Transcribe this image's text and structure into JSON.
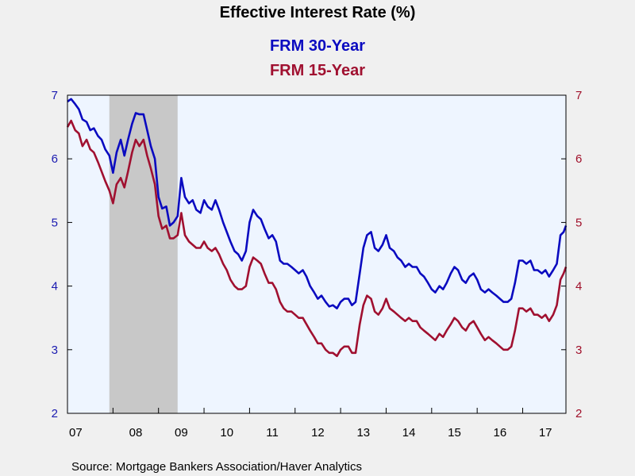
{
  "chart_data": {
    "type": "line",
    "title": "Effective Interest Rate (%)",
    "source": "Source:  Mortgage Bankers Association/Haver Analytics",
    "x_unit": "year",
    "xlim": [
      2007.0,
      2017.95
    ],
    "x_ticks": [
      {
        "label": "07",
        "year": 2007
      },
      {
        "label": "08",
        "year": 2008
      },
      {
        "label": "09",
        "year": 2009
      },
      {
        "label": "10",
        "year": 2010
      },
      {
        "label": "11",
        "year": 2011
      },
      {
        "label": "12",
        "year": 2012
      },
      {
        "label": "13",
        "year": 2013
      },
      {
        "label": "14",
        "year": 2014
      },
      {
        "label": "15",
        "year": 2015
      },
      {
        "label": "16",
        "year": 2016
      },
      {
        "label": "17",
        "year": 2017
      }
    ],
    "left_axis": {
      "ticks": [
        2,
        3,
        4,
        5,
        6,
        7
      ],
      "ylim": [
        2,
        7
      ],
      "color": "#1a1ab0"
    },
    "right_axis": {
      "ticks": [
        2,
        3,
        4,
        5,
        6,
        7
      ],
      "ylim": [
        2,
        7
      ],
      "color": "#a0102a"
    },
    "recession": {
      "start": 2007.92,
      "end": 2009.42,
      "color": "#c8c8c8"
    },
    "plot_background": "#eef5ff",
    "series": [
      {
        "name": "FRM 30-Year",
        "color": "#0a0ac0",
        "points": [
          [
            2007.0,
            6.9
          ],
          [
            2007.08,
            6.94
          ],
          [
            2007.17,
            6.86
          ],
          [
            2007.25,
            6.78
          ],
          [
            2007.33,
            6.62
          ],
          [
            2007.42,
            6.58
          ],
          [
            2007.5,
            6.45
          ],
          [
            2007.58,
            6.48
          ],
          [
            2007.67,
            6.36
          ],
          [
            2007.75,
            6.3
          ],
          [
            2007.83,
            6.15
          ],
          [
            2007.92,
            6.05
          ],
          [
            2008.0,
            5.78
          ],
          [
            2008.08,
            6.1
          ],
          [
            2008.17,
            6.3
          ],
          [
            2008.25,
            6.05
          ],
          [
            2008.33,
            6.3
          ],
          [
            2008.42,
            6.55
          ],
          [
            2008.5,
            6.72
          ],
          [
            2008.58,
            6.7
          ],
          [
            2008.67,
            6.7
          ],
          [
            2008.75,
            6.45
          ],
          [
            2008.83,
            6.2
          ],
          [
            2008.92,
            6.0
          ],
          [
            2009.0,
            5.4
          ],
          [
            2009.08,
            5.22
          ],
          [
            2009.17,
            5.25
          ],
          [
            2009.25,
            4.95
          ],
          [
            2009.33,
            5.0
          ],
          [
            2009.42,
            5.1
          ],
          [
            2009.5,
            5.7
          ],
          [
            2009.58,
            5.4
          ],
          [
            2009.67,
            5.3
          ],
          [
            2009.75,
            5.35
          ],
          [
            2009.83,
            5.2
          ],
          [
            2009.92,
            5.15
          ],
          [
            2010.0,
            5.35
          ],
          [
            2010.08,
            5.25
          ],
          [
            2010.17,
            5.2
          ],
          [
            2010.25,
            5.35
          ],
          [
            2010.33,
            5.2
          ],
          [
            2010.42,
            5.0
          ],
          [
            2010.5,
            4.85
          ],
          [
            2010.58,
            4.7
          ],
          [
            2010.67,
            4.55
          ],
          [
            2010.75,
            4.5
          ],
          [
            2010.83,
            4.4
          ],
          [
            2010.92,
            4.55
          ],
          [
            2011.0,
            5.0
          ],
          [
            2011.08,
            5.2
          ],
          [
            2011.17,
            5.1
          ],
          [
            2011.25,
            5.05
          ],
          [
            2011.33,
            4.9
          ],
          [
            2011.42,
            4.75
          ],
          [
            2011.5,
            4.8
          ],
          [
            2011.58,
            4.7
          ],
          [
            2011.67,
            4.4
          ],
          [
            2011.75,
            4.35
          ],
          [
            2011.83,
            4.35
          ],
          [
            2011.92,
            4.3
          ],
          [
            2012.0,
            4.25
          ],
          [
            2012.08,
            4.2
          ],
          [
            2012.17,
            4.25
          ],
          [
            2012.25,
            4.15
          ],
          [
            2012.33,
            4.0
          ],
          [
            2012.42,
            3.9
          ],
          [
            2012.5,
            3.8
          ],
          [
            2012.58,
            3.85
          ],
          [
            2012.67,
            3.75
          ],
          [
            2012.75,
            3.68
          ],
          [
            2012.83,
            3.7
          ],
          [
            2012.92,
            3.65
          ],
          [
            2013.0,
            3.75
          ],
          [
            2013.08,
            3.8
          ],
          [
            2013.17,
            3.8
          ],
          [
            2013.25,
            3.7
          ],
          [
            2013.33,
            3.75
          ],
          [
            2013.42,
            4.2
          ],
          [
            2013.5,
            4.6
          ],
          [
            2013.58,
            4.8
          ],
          [
            2013.67,
            4.85
          ],
          [
            2013.75,
            4.6
          ],
          [
            2013.83,
            4.55
          ],
          [
            2013.92,
            4.65
          ],
          [
            2014.0,
            4.8
          ],
          [
            2014.08,
            4.6
          ],
          [
            2014.17,
            4.55
          ],
          [
            2014.25,
            4.45
          ],
          [
            2014.33,
            4.4
          ],
          [
            2014.42,
            4.3
          ],
          [
            2014.5,
            4.35
          ],
          [
            2014.58,
            4.3
          ],
          [
            2014.67,
            4.3
          ],
          [
            2014.75,
            4.2
          ],
          [
            2014.83,
            4.15
          ],
          [
            2014.92,
            4.05
          ],
          [
            2015.0,
            3.95
          ],
          [
            2015.08,
            3.9
          ],
          [
            2015.17,
            4.0
          ],
          [
            2015.25,
            3.95
          ],
          [
            2015.33,
            4.05
          ],
          [
            2015.42,
            4.2
          ],
          [
            2015.5,
            4.3
          ],
          [
            2015.58,
            4.25
          ],
          [
            2015.67,
            4.1
          ],
          [
            2015.75,
            4.05
          ],
          [
            2015.83,
            4.15
          ],
          [
            2015.92,
            4.2
          ],
          [
            2016.0,
            4.1
          ],
          [
            2016.08,
            3.95
          ],
          [
            2016.17,
            3.9
          ],
          [
            2016.25,
            3.95
          ],
          [
            2016.33,
            3.9
          ],
          [
            2016.42,
            3.85
          ],
          [
            2016.5,
            3.8
          ],
          [
            2016.58,
            3.75
          ],
          [
            2016.67,
            3.75
          ],
          [
            2016.75,
            3.8
          ],
          [
            2016.83,
            4.05
          ],
          [
            2016.92,
            4.4
          ],
          [
            2017.0,
            4.4
          ],
          [
            2017.08,
            4.35
          ],
          [
            2017.17,
            4.4
          ],
          [
            2017.25,
            4.25
          ],
          [
            2017.33,
            4.25
          ],
          [
            2017.42,
            4.2
          ],
          [
            2017.5,
            4.25
          ],
          [
            2017.58,
            4.15
          ],
          [
            2017.67,
            4.25
          ],
          [
            2017.75,
            4.35
          ],
          [
            2017.83,
            4.8
          ],
          [
            2017.9,
            4.85
          ],
          [
            2017.95,
            4.95
          ]
        ]
      },
      {
        "name": "FRM 15-Year",
        "color": "#a01030",
        "points": [
          [
            2007.0,
            6.5
          ],
          [
            2007.08,
            6.6
          ],
          [
            2007.17,
            6.45
          ],
          [
            2007.25,
            6.4
          ],
          [
            2007.33,
            6.2
          ],
          [
            2007.42,
            6.3
          ],
          [
            2007.5,
            6.15
          ],
          [
            2007.58,
            6.1
          ],
          [
            2007.67,
            5.95
          ],
          [
            2007.75,
            5.8
          ],
          [
            2007.83,
            5.65
          ],
          [
            2007.92,
            5.5
          ],
          [
            2008.0,
            5.3
          ],
          [
            2008.08,
            5.6
          ],
          [
            2008.17,
            5.7
          ],
          [
            2008.25,
            5.55
          ],
          [
            2008.33,
            5.8
          ],
          [
            2008.42,
            6.1
          ],
          [
            2008.5,
            6.3
          ],
          [
            2008.58,
            6.2
          ],
          [
            2008.67,
            6.3
          ],
          [
            2008.75,
            6.05
          ],
          [
            2008.83,
            5.85
          ],
          [
            2008.92,
            5.6
          ],
          [
            2009.0,
            5.1
          ],
          [
            2009.08,
            4.9
          ],
          [
            2009.17,
            4.95
          ],
          [
            2009.25,
            4.75
          ],
          [
            2009.33,
            4.75
          ],
          [
            2009.42,
            4.8
          ],
          [
            2009.5,
            5.15
          ],
          [
            2009.58,
            4.8
          ],
          [
            2009.67,
            4.7
          ],
          [
            2009.75,
            4.65
          ],
          [
            2009.83,
            4.6
          ],
          [
            2009.92,
            4.6
          ],
          [
            2010.0,
            4.7
          ],
          [
            2010.08,
            4.6
          ],
          [
            2010.17,
            4.55
          ],
          [
            2010.25,
            4.6
          ],
          [
            2010.33,
            4.5
          ],
          [
            2010.42,
            4.35
          ],
          [
            2010.5,
            4.25
          ],
          [
            2010.58,
            4.1
          ],
          [
            2010.67,
            4.0
          ],
          [
            2010.75,
            3.95
          ],
          [
            2010.83,
            3.95
          ],
          [
            2010.92,
            4.0
          ],
          [
            2011.0,
            4.3
          ],
          [
            2011.08,
            4.45
          ],
          [
            2011.17,
            4.4
          ],
          [
            2011.25,
            4.35
          ],
          [
            2011.33,
            4.2
          ],
          [
            2011.42,
            4.05
          ],
          [
            2011.5,
            4.05
          ],
          [
            2011.58,
            3.95
          ],
          [
            2011.67,
            3.75
          ],
          [
            2011.75,
            3.65
          ],
          [
            2011.83,
            3.6
          ],
          [
            2011.92,
            3.6
          ],
          [
            2012.0,
            3.55
          ],
          [
            2012.08,
            3.5
          ],
          [
            2012.17,
            3.5
          ],
          [
            2012.25,
            3.4
          ],
          [
            2012.33,
            3.3
          ],
          [
            2012.42,
            3.2
          ],
          [
            2012.5,
            3.1
          ],
          [
            2012.58,
            3.1
          ],
          [
            2012.67,
            3.0
          ],
          [
            2012.75,
            2.95
          ],
          [
            2012.83,
            2.95
          ],
          [
            2012.92,
            2.9
          ],
          [
            2013.0,
            3.0
          ],
          [
            2013.08,
            3.05
          ],
          [
            2013.17,
            3.05
          ],
          [
            2013.25,
            2.95
          ],
          [
            2013.33,
            2.95
          ],
          [
            2013.42,
            3.4
          ],
          [
            2013.5,
            3.7
          ],
          [
            2013.58,
            3.85
          ],
          [
            2013.67,
            3.8
          ],
          [
            2013.75,
            3.6
          ],
          [
            2013.83,
            3.55
          ],
          [
            2013.92,
            3.65
          ],
          [
            2014.0,
            3.8
          ],
          [
            2014.08,
            3.65
          ],
          [
            2014.17,
            3.6
          ],
          [
            2014.25,
            3.55
          ],
          [
            2014.33,
            3.5
          ],
          [
            2014.42,
            3.45
          ],
          [
            2014.5,
            3.5
          ],
          [
            2014.58,
            3.45
          ],
          [
            2014.67,
            3.45
          ],
          [
            2014.75,
            3.35
          ],
          [
            2014.83,
            3.3
          ],
          [
            2014.92,
            3.25
          ],
          [
            2015.0,
            3.2
          ],
          [
            2015.08,
            3.15
          ],
          [
            2015.17,
            3.25
          ],
          [
            2015.25,
            3.2
          ],
          [
            2015.33,
            3.3
          ],
          [
            2015.42,
            3.4
          ],
          [
            2015.5,
            3.5
          ],
          [
            2015.58,
            3.45
          ],
          [
            2015.67,
            3.35
          ],
          [
            2015.75,
            3.3
          ],
          [
            2015.83,
            3.4
          ],
          [
            2015.92,
            3.45
          ],
          [
            2016.0,
            3.35
          ],
          [
            2016.08,
            3.25
          ],
          [
            2016.17,
            3.15
          ],
          [
            2016.25,
            3.2
          ],
          [
            2016.33,
            3.15
          ],
          [
            2016.42,
            3.1
          ],
          [
            2016.5,
            3.05
          ],
          [
            2016.58,
            3.0
          ],
          [
            2016.67,
            3.0
          ],
          [
            2016.75,
            3.05
          ],
          [
            2016.83,
            3.3
          ],
          [
            2016.92,
            3.65
          ],
          [
            2017.0,
            3.65
          ],
          [
            2017.08,
            3.6
          ],
          [
            2017.17,
            3.65
          ],
          [
            2017.25,
            3.55
          ],
          [
            2017.33,
            3.55
          ],
          [
            2017.42,
            3.5
          ],
          [
            2017.5,
            3.55
          ],
          [
            2017.58,
            3.45
          ],
          [
            2017.67,
            3.55
          ],
          [
            2017.75,
            3.7
          ],
          [
            2017.83,
            4.1
          ],
          [
            2017.9,
            4.2
          ],
          [
            2017.95,
            4.3
          ]
        ]
      }
    ]
  }
}
